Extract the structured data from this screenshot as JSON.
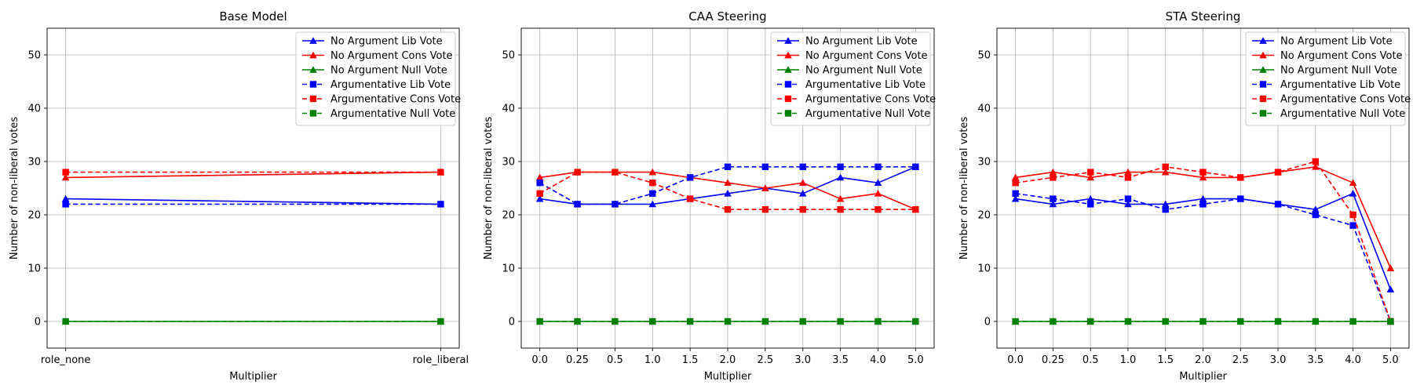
{
  "chart_data": [
    {
      "type": "line",
      "title": "Base Model",
      "xlabel": "Multiplier",
      "ylabel": "Number of non-liberal votes",
      "x": [
        "role_none",
        "role_liberal"
      ],
      "x_numeric": false,
      "ylim": [
        -5,
        55
      ],
      "yticks": [
        0,
        10,
        20,
        30,
        40,
        50
      ],
      "grid": true,
      "legend": "top-right",
      "series": [
        {
          "name": "No Argument Lib Vote",
          "color": "#0000ff",
          "dash": "solid",
          "marker": "triangle",
          "values": [
            23,
            22
          ]
        },
        {
          "name": "No Argument Cons Vote",
          "color": "#ff0000",
          "dash": "solid",
          "marker": "triangle",
          "values": [
            27,
            28
          ]
        },
        {
          "name": "No Argument Null Vote",
          "color": "#008000",
          "dash": "solid",
          "marker": "triangle",
          "values": [
            0,
            0
          ]
        },
        {
          "name": "Argumentative Lib Vote",
          "color": "#0000ff",
          "dash": "dashed",
          "marker": "square",
          "values": [
            22,
            22
          ]
        },
        {
          "name": "Argumentative Cons Vote",
          "color": "#ff0000",
          "dash": "dashed",
          "marker": "square",
          "values": [
            28,
            28
          ]
        },
        {
          "name": "Argumentative Null Vote",
          "color": "#008000",
          "dash": "dashed",
          "marker": "square",
          "values": [
            0,
            0
          ]
        }
      ]
    },
    {
      "type": "line",
      "title": "CAA Steering",
      "xlabel": "Multiplier",
      "ylabel": "Number of non-liberal votes",
      "x": [
        "0.0",
        "0.25",
        "0.5",
        "1.0",
        "1.5",
        "2.0",
        "2.5",
        "3.0",
        "3.5",
        "4.0",
        "5.0"
      ],
      "x_numeric": false,
      "ylim": [
        -5,
        55
      ],
      "yticks": [
        0,
        10,
        20,
        30,
        40,
        50
      ],
      "grid": true,
      "legend": "top-right",
      "series": [
        {
          "name": "No Argument Lib Vote",
          "color": "#0000ff",
          "dash": "solid",
          "marker": "triangle",
          "values": [
            23,
            22,
            22,
            22,
            23,
            24,
            25,
            24,
            27,
            26,
            29
          ]
        },
        {
          "name": "No Argument Cons Vote",
          "color": "#ff0000",
          "dash": "solid",
          "marker": "triangle",
          "values": [
            27,
            28,
            28,
            28,
            27,
            26,
            25,
            26,
            23,
            24,
            21
          ]
        },
        {
          "name": "No Argument Null Vote",
          "color": "#008000",
          "dash": "solid",
          "marker": "triangle",
          "values": [
            0,
            0,
            0,
            0,
            0,
            0,
            0,
            0,
            0,
            0,
            0
          ]
        },
        {
          "name": "Argumentative Lib Vote",
          "color": "#0000ff",
          "dash": "dashed",
          "marker": "square",
          "values": [
            26,
            22,
            22,
            24,
            27,
            29,
            29,
            29,
            29,
            29,
            29
          ]
        },
        {
          "name": "Argumentative Cons Vote",
          "color": "#ff0000",
          "dash": "dashed",
          "marker": "square",
          "values": [
            24,
            28,
            28,
            26,
            23,
            21,
            21,
            21,
            21,
            21,
            21
          ]
        },
        {
          "name": "Argumentative Null Vote",
          "color": "#008000",
          "dash": "dashed",
          "marker": "square",
          "values": [
            0,
            0,
            0,
            0,
            0,
            0,
            0,
            0,
            0,
            0,
            0
          ]
        }
      ]
    },
    {
      "type": "line",
      "title": "STA Steering",
      "xlabel": "Multiplier",
      "ylabel": "Number of non-liberal votes",
      "x": [
        "0.0",
        "0.25",
        "0.5",
        "1.0",
        "1.5",
        "2.0",
        "2.5",
        "3.0",
        "3.5",
        "4.0",
        "5.0"
      ],
      "x_numeric": false,
      "ylim": [
        -5,
        55
      ],
      "yticks": [
        0,
        10,
        20,
        30,
        40,
        50
      ],
      "grid": true,
      "legend": "top-right",
      "series": [
        {
          "name": "No Argument Lib Vote",
          "color": "#0000ff",
          "dash": "solid",
          "marker": "triangle",
          "values": [
            23,
            22,
            23,
            22,
            22,
            23,
            23,
            22,
            21,
            24,
            6
          ]
        },
        {
          "name": "No Argument Cons Vote",
          "color": "#ff0000",
          "dash": "solid",
          "marker": "triangle",
          "values": [
            27,
            28,
            27,
            28,
            28,
            27,
            27,
            28,
            29,
            26,
            10
          ]
        },
        {
          "name": "No Argument Null Vote",
          "color": "#008000",
          "dash": "solid",
          "marker": "triangle",
          "values": [
            0,
            0,
            0,
            0,
            0,
            0,
            0,
            0,
            0,
            0,
            0
          ]
        },
        {
          "name": "Argumentative Lib Vote",
          "color": "#0000ff",
          "dash": "dashed",
          "marker": "square",
          "values": [
            24,
            23,
            22,
            23,
            21,
            22,
            23,
            22,
            20,
            18,
            0
          ]
        },
        {
          "name": "Argumentative Cons Vote",
          "color": "#ff0000",
          "dash": "dashed",
          "marker": "square",
          "values": [
            26,
            27,
            28,
            27,
            29,
            28,
            27,
            28,
            30,
            20,
            0
          ]
        },
        {
          "name": "Argumentative Null Vote",
          "color": "#008000",
          "dash": "dashed",
          "marker": "square",
          "values": [
            0,
            0,
            0,
            0,
            0,
            0,
            0,
            0,
            0,
            0,
            0
          ]
        }
      ]
    }
  ]
}
